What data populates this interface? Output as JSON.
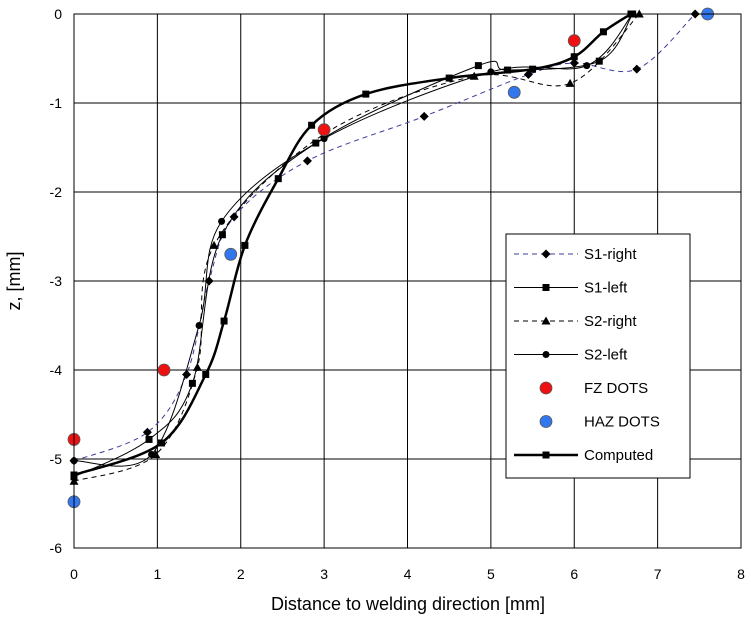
{
  "chart_data": {
    "type": "scatter",
    "title": "",
    "xlabel": "Distance to welding direction [mm]",
    "ylabel": "z, [mm]",
    "xlim": [
      0,
      8
    ],
    "ylim": [
      -6,
      0
    ],
    "xticks": [
      "0",
      "1",
      "2",
      "3",
      "4",
      "5",
      "6",
      "7",
      "8"
    ],
    "yticks": [
      "0",
      "-1",
      "-2",
      "-3",
      "-4",
      "-5",
      "-6"
    ],
    "grid": true,
    "legend_position": "right",
    "series": [
      {
        "name": "S1-right",
        "marker": "diamond",
        "line": "dashed",
        "color": "#3b3b9c",
        "points": [
          [
            0,
            -5.02
          ],
          [
            0.88,
            -4.7
          ],
          [
            1.35,
            -4.05
          ],
          [
            1.62,
            -3.0
          ],
          [
            1.92,
            -2.28
          ],
          [
            2.8,
            -1.65
          ],
          [
            4.2,
            -1.15
          ],
          [
            5.45,
            -0.68
          ],
          [
            6.0,
            -0.55
          ],
          [
            6.75,
            -0.62
          ],
          [
            7.45,
            0
          ]
        ]
      },
      {
        "name": "S1-left",
        "marker": "square",
        "line": "solid-thin",
        "color": "#000000",
        "points": [
          [
            0,
            -5.2
          ],
          [
            0.9,
            -4.78
          ],
          [
            1.42,
            -4.15
          ],
          [
            1.78,
            -2.48
          ],
          [
            2.9,
            -1.45
          ],
          [
            4.85,
            -0.58
          ],
          [
            5.2,
            -0.63
          ],
          [
            6.3,
            -0.53
          ],
          [
            6.7,
            0
          ]
        ]
      },
      {
        "name": "S2-right",
        "marker": "triangle",
        "line": "dashed",
        "color": "#000000",
        "points": [
          [
            0,
            -5.25
          ],
          [
            0.98,
            -4.95
          ],
          [
            1.48,
            -3.97
          ],
          [
            1.68,
            -2.6
          ],
          [
            3.0,
            -1.35
          ],
          [
            4.8,
            -0.7
          ],
          [
            5.95,
            -0.78
          ],
          [
            6.78,
            0
          ]
        ]
      },
      {
        "name": "S2-left",
        "marker": "circle",
        "line": "solid-thin",
        "color": "#000000",
        "points": [
          [
            0,
            -5.02
          ],
          [
            0.93,
            -4.95
          ],
          [
            1.5,
            -3.5
          ],
          [
            1.77,
            -2.33
          ],
          [
            3.0,
            -1.4
          ],
          [
            5.0,
            -0.65
          ],
          [
            6.15,
            -0.58
          ],
          [
            6.7,
            0
          ]
        ]
      },
      {
        "name": "FZ DOTS",
        "marker": "circle-large",
        "line": "none",
        "color": "#ee1111",
        "points": [
          [
            0,
            -4.78
          ],
          [
            1.08,
            -4.0
          ],
          [
            3.0,
            -1.3
          ],
          [
            6.0,
            -0.3
          ]
        ]
      },
      {
        "name": "HAZ DOTS",
        "marker": "circle-large",
        "line": "none",
        "color": "#3377ee",
        "points": [
          [
            0,
            -5.48
          ],
          [
            1.88,
            -2.7
          ],
          [
            5.28,
            -0.88
          ],
          [
            7.6,
            0
          ]
        ]
      },
      {
        "name": "Computed",
        "marker": "square",
        "line": "solid-thick",
        "color": "#000000",
        "points": [
          [
            0,
            -5.18
          ],
          [
            1.05,
            -4.82
          ],
          [
            1.58,
            -4.05
          ],
          [
            1.8,
            -3.45
          ],
          [
            2.05,
            -2.6
          ],
          [
            2.45,
            -1.85
          ],
          [
            2.85,
            -1.25
          ],
          [
            3.5,
            -0.9
          ],
          [
            4.5,
            -0.72
          ],
          [
            5.5,
            -0.62
          ],
          [
            6.0,
            -0.48
          ],
          [
            6.35,
            -0.2
          ],
          [
            6.68,
            0
          ]
        ]
      }
    ]
  }
}
